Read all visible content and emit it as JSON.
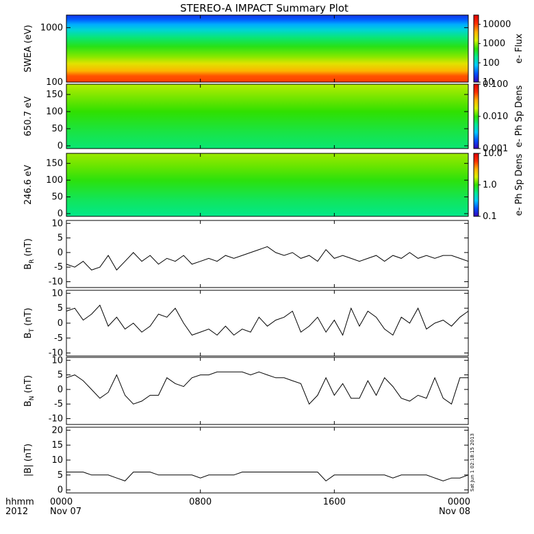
{
  "title": "STEREO-A IMPACT Summary Plot",
  "timestamp_label": "Sat Jun 1 02:18:15 2013",
  "x_axis": {
    "row1_left": "hhmm",
    "row2_left": "2012",
    "ticks": [
      {
        "hours": 0,
        "time": "0000",
        "date": "Nov 07"
      },
      {
        "hours": 8,
        "time": "0800",
        "date": ""
      },
      {
        "hours": 16,
        "time": "1600",
        "date": ""
      },
      {
        "hours": 24,
        "time": "0000",
        "date": "Nov 08"
      }
    ],
    "range_hours": [
      0,
      24
    ]
  },
  "colors": {
    "colormap": [
      "#3a00b8",
      "#0050ff",
      "#00c8ff",
      "#00e890",
      "#30e000",
      "#d8f000",
      "#ffb000",
      "#ff3000",
      "#e00000"
    ],
    "line": "#000000"
  },
  "chart_data": [
    {
      "type": "heatmap",
      "ylabel": "SWEA (eV)",
      "yscale": "log",
      "yrange": [
        100,
        1700
      ],
      "yticks": [
        {
          "v": 100,
          "label": "100"
        },
        {
          "v": 1000,
          "label": "1000"
        }
      ],
      "colorbar": {
        "label": "e- Flux",
        "scale": "log",
        "range": [
          10,
          30000
        ],
        "ticks": [
          {
            "v": 10,
            "label": "10"
          },
          {
            "v": 100,
            "label": "100"
          },
          {
            "v": 1000,
            "label": "1000"
          },
          {
            "v": 10000,
            "label": "10000"
          }
        ]
      },
      "profile": [
        {
          "y": 100,
          "c": 0.86
        },
        {
          "y": 130,
          "c": 0.84
        },
        {
          "y": 160,
          "c": 0.74
        },
        {
          "y": 220,
          "c": 0.65
        },
        {
          "y": 300,
          "c": 0.56
        },
        {
          "y": 450,
          "c": 0.48
        },
        {
          "y": 650,
          "c": 0.4
        },
        {
          "y": 900,
          "c": 0.3
        },
        {
          "y": 1150,
          "c": 0.22
        },
        {
          "y": 1400,
          "c": 0.14
        },
        {
          "y": 1700,
          "c": 0.08
        }
      ]
    },
    {
      "type": "heatmap",
      "ylabel": "650.7 eV",
      "yscale": "linear",
      "yrange": [
        -8,
        180
      ],
      "yticks": [
        {
          "v": 0,
          "label": "0"
        },
        {
          "v": 50,
          "label": "50"
        },
        {
          "v": 100,
          "label": "100"
        },
        {
          "v": 150,
          "label": "150"
        }
      ],
      "colorbar": {
        "label": "e- Ph Sp Dens",
        "scale": "log",
        "range": [
          0.001,
          0.1
        ],
        "ticks": [
          {
            "v": 0.001,
            "label": "0.001"
          },
          {
            "v": 0.01,
            "label": "0.010"
          },
          {
            "v": 0.1,
            "label": "0.100"
          }
        ]
      },
      "profile": [
        {
          "y": -8,
          "c": 0.4
        },
        {
          "y": 40,
          "c": 0.44
        },
        {
          "y": 100,
          "c": 0.5
        },
        {
          "y": 140,
          "c": 0.55
        },
        {
          "y": 180,
          "c": 0.6
        }
      ]
    },
    {
      "type": "heatmap",
      "ylabel": "246.6 eV",
      "yscale": "linear",
      "yrange": [
        -8,
        180
      ],
      "yticks": [
        {
          "v": 0,
          "label": "0"
        },
        {
          "v": 50,
          "label": "50"
        },
        {
          "v": 100,
          "label": "100"
        },
        {
          "v": 150,
          "label": "150"
        }
      ],
      "colorbar": {
        "label": "e- Ph Sp Dens",
        "scale": "log",
        "range": [
          0.1,
          10
        ],
        "ticks": [
          {
            "v": 0.1,
            "label": "0.1"
          },
          {
            "v": 1,
            "label": "1.0"
          },
          {
            "v": 10,
            "label": "10.0"
          }
        ]
      },
      "profile": [
        {
          "y": -8,
          "c": 0.38
        },
        {
          "y": 40,
          "c": 0.42
        },
        {
          "y": 100,
          "c": 0.49
        },
        {
          "y": 140,
          "c": 0.54
        },
        {
          "y": 180,
          "c": 0.58
        }
      ]
    },
    {
      "type": "line",
      "ylabel": "B",
      "ysub": "R",
      "yunit": "(nT)",
      "yrange": [
        -12,
        11
      ],
      "yticks": [
        {
          "v": -10,
          "label": "-10"
        },
        {
          "v": -5,
          "label": "-5"
        },
        {
          "v": 0,
          "label": "0"
        },
        {
          "v": 5,
          "label": "5"
        },
        {
          "v": 10,
          "label": "10"
        }
      ],
      "x": [
        0,
        0.5,
        1,
        1.5,
        2,
        2.5,
        3,
        3.5,
        4,
        4.5,
        5,
        5.5,
        6,
        6.5,
        7,
        7.5,
        8,
        8.5,
        9,
        9.5,
        10,
        10.5,
        11,
        11.5,
        12,
        12.5,
        13,
        13.5,
        14,
        14.5,
        15,
        15.5,
        16,
        16.5,
        17,
        17.5,
        18,
        18.5,
        19,
        19.5,
        20,
        20.5,
        21,
        21.5,
        22,
        22.5,
        23,
        23.5,
        24
      ],
      "y": [
        -4,
        -5,
        -3,
        -6,
        -5,
        -1,
        -6,
        -3,
        0,
        -3,
        -1,
        -4,
        -2,
        -3,
        -1,
        -4,
        -3,
        -2,
        -3,
        -1,
        -2,
        -1,
        0,
        1,
        2,
        0,
        -1,
        0,
        -2,
        -1,
        -3,
        1,
        -2,
        -1,
        -2,
        -3,
        -2,
        -1,
        -3,
        -1,
        -2,
        0,
        -2,
        -1,
        -2,
        -1,
        -1,
        -2,
        -3
      ]
    },
    {
      "type": "line",
      "ylabel": "B",
      "ysub": "T",
      "yunit": "(nT)",
      "yrange": [
        -11,
        11
      ],
      "yticks": [
        {
          "v": -10,
          "label": "-10"
        },
        {
          "v": -5,
          "label": "-5"
        },
        {
          "v": 0,
          "label": "0"
        },
        {
          "v": 5,
          "label": "5"
        },
        {
          "v": 10,
          "label": "10"
        }
      ],
      "x": [
        0,
        0.5,
        1,
        1.5,
        2,
        2.5,
        3,
        3.5,
        4,
        4.5,
        5,
        5.5,
        6,
        6.5,
        7,
        7.5,
        8,
        8.5,
        9,
        9.5,
        10,
        10.5,
        11,
        11.5,
        12,
        12.5,
        13,
        13.5,
        14,
        14.5,
        15,
        15.5,
        16,
        16.5,
        17,
        17.5,
        18,
        18.5,
        19,
        19.5,
        20,
        20.5,
        21,
        21.5,
        22,
        22.5,
        23,
        23.5,
        24
      ],
      "y": [
        4,
        5,
        1,
        3,
        6,
        -1,
        2,
        -2,
        0,
        -3,
        -1,
        3,
        2,
        5,
        0,
        -4,
        -3,
        -2,
        -4,
        -1,
        -4,
        -2,
        -3,
        2,
        -1,
        1,
        2,
        4,
        -3,
        -1,
        2,
        -3,
        1,
        -4,
        5,
        -1,
        4,
        2,
        -2,
        -4,
        2,
        0,
        5,
        -2,
        0,
        1,
        -1,
        2,
        4
      ]
    },
    {
      "type": "line",
      "ylabel": "B",
      "ysub": "N",
      "yunit": "(nT)",
      "yrange": [
        -12,
        11
      ],
      "yticks": [
        {
          "v": -10,
          "label": "-10"
        },
        {
          "v": -5,
          "label": "-5"
        },
        {
          "v": 0,
          "label": "0"
        },
        {
          "v": 5,
          "label": "5"
        },
        {
          "v": 10,
          "label": "10"
        }
      ],
      "x": [
        0,
        0.5,
        1,
        1.5,
        2,
        2.5,
        3,
        3.5,
        4,
        4.5,
        5,
        5.5,
        6,
        6.5,
        7,
        7.5,
        8,
        8.5,
        9,
        9.5,
        10,
        10.5,
        11,
        11.5,
        12,
        12.5,
        13,
        13.5,
        14,
        14.5,
        15,
        15.5,
        16,
        16.5,
        17,
        17.5,
        18,
        18.5,
        19,
        19.5,
        20,
        20.5,
        21,
        21.5,
        22,
        22.5,
        23,
        23.5,
        24
      ],
      "y": [
        4,
        5,
        3,
        0,
        -3,
        -1,
        5,
        -2,
        -5,
        -4,
        -2,
        -2,
        4,
        2,
        1,
        4,
        5,
        5,
        6,
        6,
        6,
        6,
        5,
        6,
        5,
        4,
        4,
        3,
        2,
        -5,
        -2,
        4,
        -2,
        2,
        -3,
        -3,
        3,
        -2,
        4,
        1,
        -3,
        -4,
        -2,
        -3,
        4,
        -3,
        -5,
        4,
        4
      ]
    },
    {
      "type": "line",
      "ylabel": "|B|",
      "yunit": "(nT)",
      "yrange": [
        -1,
        21
      ],
      "yticks": [
        {
          "v": 0,
          "label": "0"
        },
        {
          "v": 5,
          "label": "5"
        },
        {
          "v": 10,
          "label": "10"
        },
        {
          "v": 15,
          "label": "15"
        },
        {
          "v": 20,
          "label": "20"
        }
      ],
      "x": [
        0,
        0.5,
        1,
        1.5,
        2,
        2.5,
        3,
        3.5,
        4,
        4.5,
        5,
        5.5,
        6,
        6.5,
        7,
        7.5,
        8,
        8.5,
        9,
        9.5,
        10,
        10.5,
        11,
        11.5,
        12,
        12.5,
        13,
        13.5,
        14,
        14.5,
        15,
        15.5,
        16,
        16.5,
        17,
        17.5,
        18,
        18.5,
        19,
        19.5,
        20,
        20.5,
        21,
        21.5,
        22,
        22.5,
        23,
        23.5,
        24
      ],
      "y": [
        6,
        6,
        6,
        5,
        5,
        5,
        4,
        3,
        6,
        6,
        6,
        5,
        5,
        5,
        5,
        5,
        4,
        5,
        5,
        5,
        5,
        6,
        6,
        6,
        6,
        6,
        6,
        6,
        6,
        6,
        6,
        3,
        5,
        5,
        5,
        5,
        5,
        5,
        5,
        4,
        5,
        5,
        5,
        5,
        4,
        3,
        4,
        4,
        5
      ]
    }
  ]
}
